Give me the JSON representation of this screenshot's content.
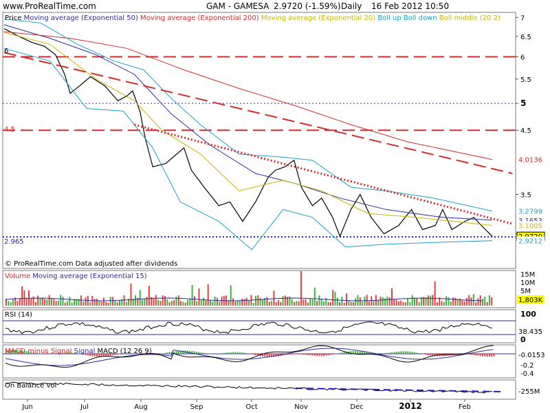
{
  "header": {
    "site": "www.ProRealTime.com",
    "ticker": "GAM - GAMESA",
    "price_change": "2.9720 (-1.59%)",
    "period": "Daily",
    "datetime": "16 Feb 2012 10:50"
  },
  "price_panel": {
    "legend": [
      {
        "text": "Price",
        "color": "#000000"
      },
      {
        "text": "Moving average (Exponential 50)",
        "color": "#2b2b9a"
      },
      {
        "text": "Moving average (Exponential 200)",
        "color": "#d42a2a"
      },
      {
        "text": "Moving average (Exponential 20)",
        "color": "#c8b400"
      },
      {
        "text": "Boll up Boll down",
        "color": "#1aa0c8"
      },
      {
        "text": "Boll middle (20 2)",
        "color": "#c8b400"
      }
    ],
    "footer": "© ProRealTime.com  Data adjusted after dividends",
    "level_labels": [
      "6",
      "4.5",
      "2.965"
    ],
    "value_tags": [
      {
        "text": "4.0136",
        "value": 4.0136,
        "color": "#d42a2a",
        "bg": "#ffffff"
      },
      {
        "text": "3.2799",
        "value": 3.2799,
        "color": "#1aa0c8",
        "bg": "#ffffff"
      },
      {
        "text": "3.1653",
        "value": 3.1653,
        "color": "#2b2b9a",
        "bg": "#ffffff"
      },
      {
        "text": "3.1005",
        "value": 3.1005,
        "color": "#c8b400",
        "bg": "#ffffff"
      },
      {
        "text": "2.9720",
        "value": 2.972,
        "color": "#000000",
        "bg": "#ffff00"
      },
      {
        "text": "2.9212",
        "value": 2.9212,
        "color": "#1aa0c8",
        "bg": "#ffffff"
      }
    ]
  },
  "volume_panel": {
    "legend": [
      {
        "text": "Volume",
        "color": "#d42a2a"
      },
      {
        "text": "Moving average (Exponential 15)",
        "color": "#2b2b9a"
      }
    ],
    "value_tag": "1,803K"
  },
  "rsi_panel": {
    "legend": "RSI (14)",
    "value_tag": "38.435"
  },
  "macd_panel": {
    "legend": [
      {
        "text": "MACD minus Signal",
        "color": "#d42a2a"
      },
      {
        "text": "Signal",
        "color": "#2b2b9a"
      },
      {
        "text": "MACD (12 26 9)",
        "color": "#000000"
      }
    ],
    "value_tag": "-0.0153"
  },
  "obv_panel": {
    "legend": "On Balance vol",
    "value_tag": "-255M"
  },
  "x_axis_labels": [
    "Jun",
    "Jul",
    "Aug",
    "Sep",
    "Oct",
    "Nov",
    "Dec",
    "2012",
    "Feb"
  ],
  "chart_data": [
    {
      "type": "line",
      "panel": "price",
      "title": "GAM - GAMESA",
      "scale": "log",
      "y_ticks": [
        "7",
        "6.5",
        "6",
        "5.5",
        "5",
        "4.5",
        "3.5",
        "3"
      ],
      "ylim": [
        2.75,
        7.1
      ],
      "x_range": [
        "2011-05-26",
        "2012-02-16"
      ],
      "series": [
        {
          "name": "Price",
          "color": "#000000",
          "points": [
            [
              "2011-05-26",
              6.7
            ],
            [
              "2011-06-03",
              6.5
            ],
            [
              "2011-06-10",
              6.35
            ],
            [
              "2011-06-17",
              6.25
            ],
            [
              "2011-06-23",
              6.05
            ],
            [
              "2011-06-28",
              5.6
            ],
            [
              "2011-07-01",
              5.2
            ],
            [
              "2011-07-06",
              5.35
            ],
            [
              "2011-07-12",
              5.55
            ],
            [
              "2011-07-20",
              5.35
            ],
            [
              "2011-07-27",
              5.05
            ],
            [
              "2011-08-01",
              5.15
            ],
            [
              "2011-08-04",
              5.25
            ],
            [
              "2011-08-08",
              4.85
            ],
            [
              "2011-08-11",
              4.35
            ],
            [
              "2011-08-15",
              3.9
            ],
            [
              "2011-08-22",
              3.95
            ],
            [
              "2011-09-01",
              4.2
            ],
            [
              "2011-09-05",
              3.85
            ],
            [
              "2011-09-12",
              3.6
            ],
            [
              "2011-09-20",
              3.35
            ],
            [
              "2011-09-26",
              3.4
            ],
            [
              "2011-10-03",
              3.15
            ],
            [
              "2011-10-10",
              3.4
            ],
            [
              "2011-10-17",
              3.75
            ],
            [
              "2011-10-21",
              3.85
            ],
            [
              "2011-10-26",
              3.9
            ],
            [
              "2011-10-31",
              4.0
            ],
            [
              "2011-11-04",
              3.6
            ],
            [
              "2011-11-10",
              3.35
            ],
            [
              "2011-11-15",
              3.45
            ],
            [
              "2011-11-21",
              3.2
            ],
            [
              "2011-11-25",
              2.97
            ],
            [
              "2011-12-01",
              3.3
            ],
            [
              "2011-12-06",
              3.5
            ],
            [
              "2011-12-12",
              3.2
            ],
            [
              "2011-12-19",
              3.0
            ],
            [
              "2011-12-27",
              3.1
            ],
            [
              "2012-01-03",
              3.3
            ],
            [
              "2012-01-09",
              3.05
            ],
            [
              "2012-01-16",
              3.1
            ],
            [
              "2012-01-20",
              3.3
            ],
            [
              "2012-01-25",
              3.05
            ],
            [
              "2012-02-01",
              3.15
            ],
            [
              "2012-02-06",
              3.2
            ],
            [
              "2012-02-10",
              3.1
            ],
            [
              "2012-02-16",
              2.972
            ]
          ]
        },
        {
          "name": "Moving average (Exponential 50)",
          "color": "#2b2b9a",
          "points": [
            [
              "2011-05-26",
              6.8
            ],
            [
              "2011-06-20",
              6.45
            ],
            [
              "2011-07-15",
              6.05
            ],
            [
              "2011-08-05",
              5.6
            ],
            [
              "2011-08-25",
              4.8
            ],
            [
              "2011-09-15",
              4.25
            ],
            [
              "2011-10-10",
              3.8
            ],
            [
              "2011-11-01",
              3.65
            ],
            [
              "2011-11-25",
              3.45
            ],
            [
              "2011-12-20",
              3.3
            ],
            [
              "2012-01-20",
              3.2
            ],
            [
              "2012-02-16",
              3.1653
            ]
          ]
        },
        {
          "name": "Moving average (Exponential 200)",
          "color": "#d42a2a",
          "points": [
            [
              "2011-05-26",
              6.62
            ],
            [
              "2011-07-01",
              6.45
            ],
            [
              "2011-08-01",
              6.2
            ],
            [
              "2011-09-01",
              5.7
            ],
            [
              "2011-10-01",
              5.3
            ],
            [
              "2011-11-01",
              4.95
            ],
            [
              "2011-12-01",
              4.6
            ],
            [
              "2012-01-01",
              4.3
            ],
            [
              "2012-02-16",
              4.0136
            ]
          ]
        },
        {
          "name": "Moving average (Exponential 20)",
          "color": "#c8b400",
          "points": [
            [
              "2011-05-26",
              6.6
            ],
            [
              "2011-06-20",
              6.3
            ],
            [
              "2011-07-15",
              5.5
            ],
            [
              "2011-08-05",
              5.05
            ],
            [
              "2011-08-20",
              4.5
            ],
            [
              "2011-09-10",
              4.1
            ],
            [
              "2011-10-01",
              3.55
            ],
            [
              "2011-10-25",
              3.7
            ],
            [
              "2011-11-15",
              3.55
            ],
            [
              "2011-12-10",
              3.25
            ],
            [
              "2012-01-05",
              3.2
            ],
            [
              "2012-02-16",
              3.1005
            ]
          ]
        },
        {
          "name": "Boll up",
          "color": "#1aa0c8",
          "points": [
            [
              "2011-05-26",
              6.95
            ],
            [
              "2011-06-15",
              6.85
            ],
            [
              "2011-07-05",
              6.3
            ],
            [
              "2011-07-25",
              5.9
            ],
            [
              "2011-08-10",
              5.7
            ],
            [
              "2011-08-25",
              5.1
            ],
            [
              "2011-09-10",
              4.6
            ],
            [
              "2011-10-01",
              4.1
            ],
            [
              "2011-10-25",
              4.05
            ],
            [
              "2011-11-10",
              4.0
            ],
            [
              "2011-12-01",
              3.6
            ],
            [
              "2011-12-20",
              3.55
            ],
            [
              "2012-01-15",
              3.45
            ],
            [
              "2012-02-16",
              3.2799
            ]
          ]
        },
        {
          "name": "Boll down",
          "color": "#1aa0c8",
          "points": [
            [
              "2011-05-26",
              6.2
            ],
            [
              "2011-06-20",
              5.9
            ],
            [
              "2011-07-10",
              4.9
            ],
            [
              "2011-07-30",
              4.85
            ],
            [
              "2011-08-15",
              4.2
            ],
            [
              "2011-08-30",
              3.4
            ],
            [
              "2011-09-20",
              3.15
            ],
            [
              "2011-10-08",
              2.82
            ],
            [
              "2011-10-25",
              3.3
            ],
            [
              "2011-11-10",
              3.2
            ],
            [
              "2011-11-28",
              2.85
            ],
            [
              "2011-12-20",
              2.88
            ],
            [
              "2012-01-15",
              2.9
            ],
            [
              "2012-02-16",
              2.9212
            ]
          ]
        }
      ],
      "horizontal_levels": [
        {
          "value": 6.0,
          "style": "dashed",
          "color": "#d42a2a"
        },
        {
          "value": 5.0,
          "style": "dotted",
          "color": "#2b2b9a"
        },
        {
          "value": 4.5,
          "style": "dashed",
          "color": "#d42a2a"
        },
        {
          "value": 2.965,
          "style": "dotted",
          "color": "#2020c0"
        }
      ],
      "trend_lines": [
        {
          "style": "dashed",
          "color": "#d42a2a",
          "from": [
            "2011-05-26",
            6.1
          ],
          "to": [
            "2012-02-27",
            3.8
          ]
        },
        {
          "style": "dotted",
          "color": "#d42a2a",
          "from": [
            "2011-08-05",
            4.6
          ],
          "to": [
            "2012-02-27",
            3.12
          ]
        }
      ]
    },
    {
      "type": "bar",
      "panel": "volume",
      "y_ticks": [
        "15M",
        "10M",
        "5M"
      ],
      "ylim": [
        0,
        16
      ]
    },
    {
      "type": "line",
      "panel": "rsi",
      "y_ticks": [
        "100",
        "0"
      ],
      "ylim": [
        0,
        100
      ],
      "levels": [
        70,
        30
      ],
      "last": 38.435
    },
    {
      "type": "line",
      "panel": "macd",
      "y_ticks": [
        "-0.2",
        "-0.4"
      ],
      "ylim": [
        -0.5,
        0.1
      ],
      "last": -0.0153
    },
    {
      "type": "line",
      "panel": "obv",
      "last": -255
    }
  ]
}
